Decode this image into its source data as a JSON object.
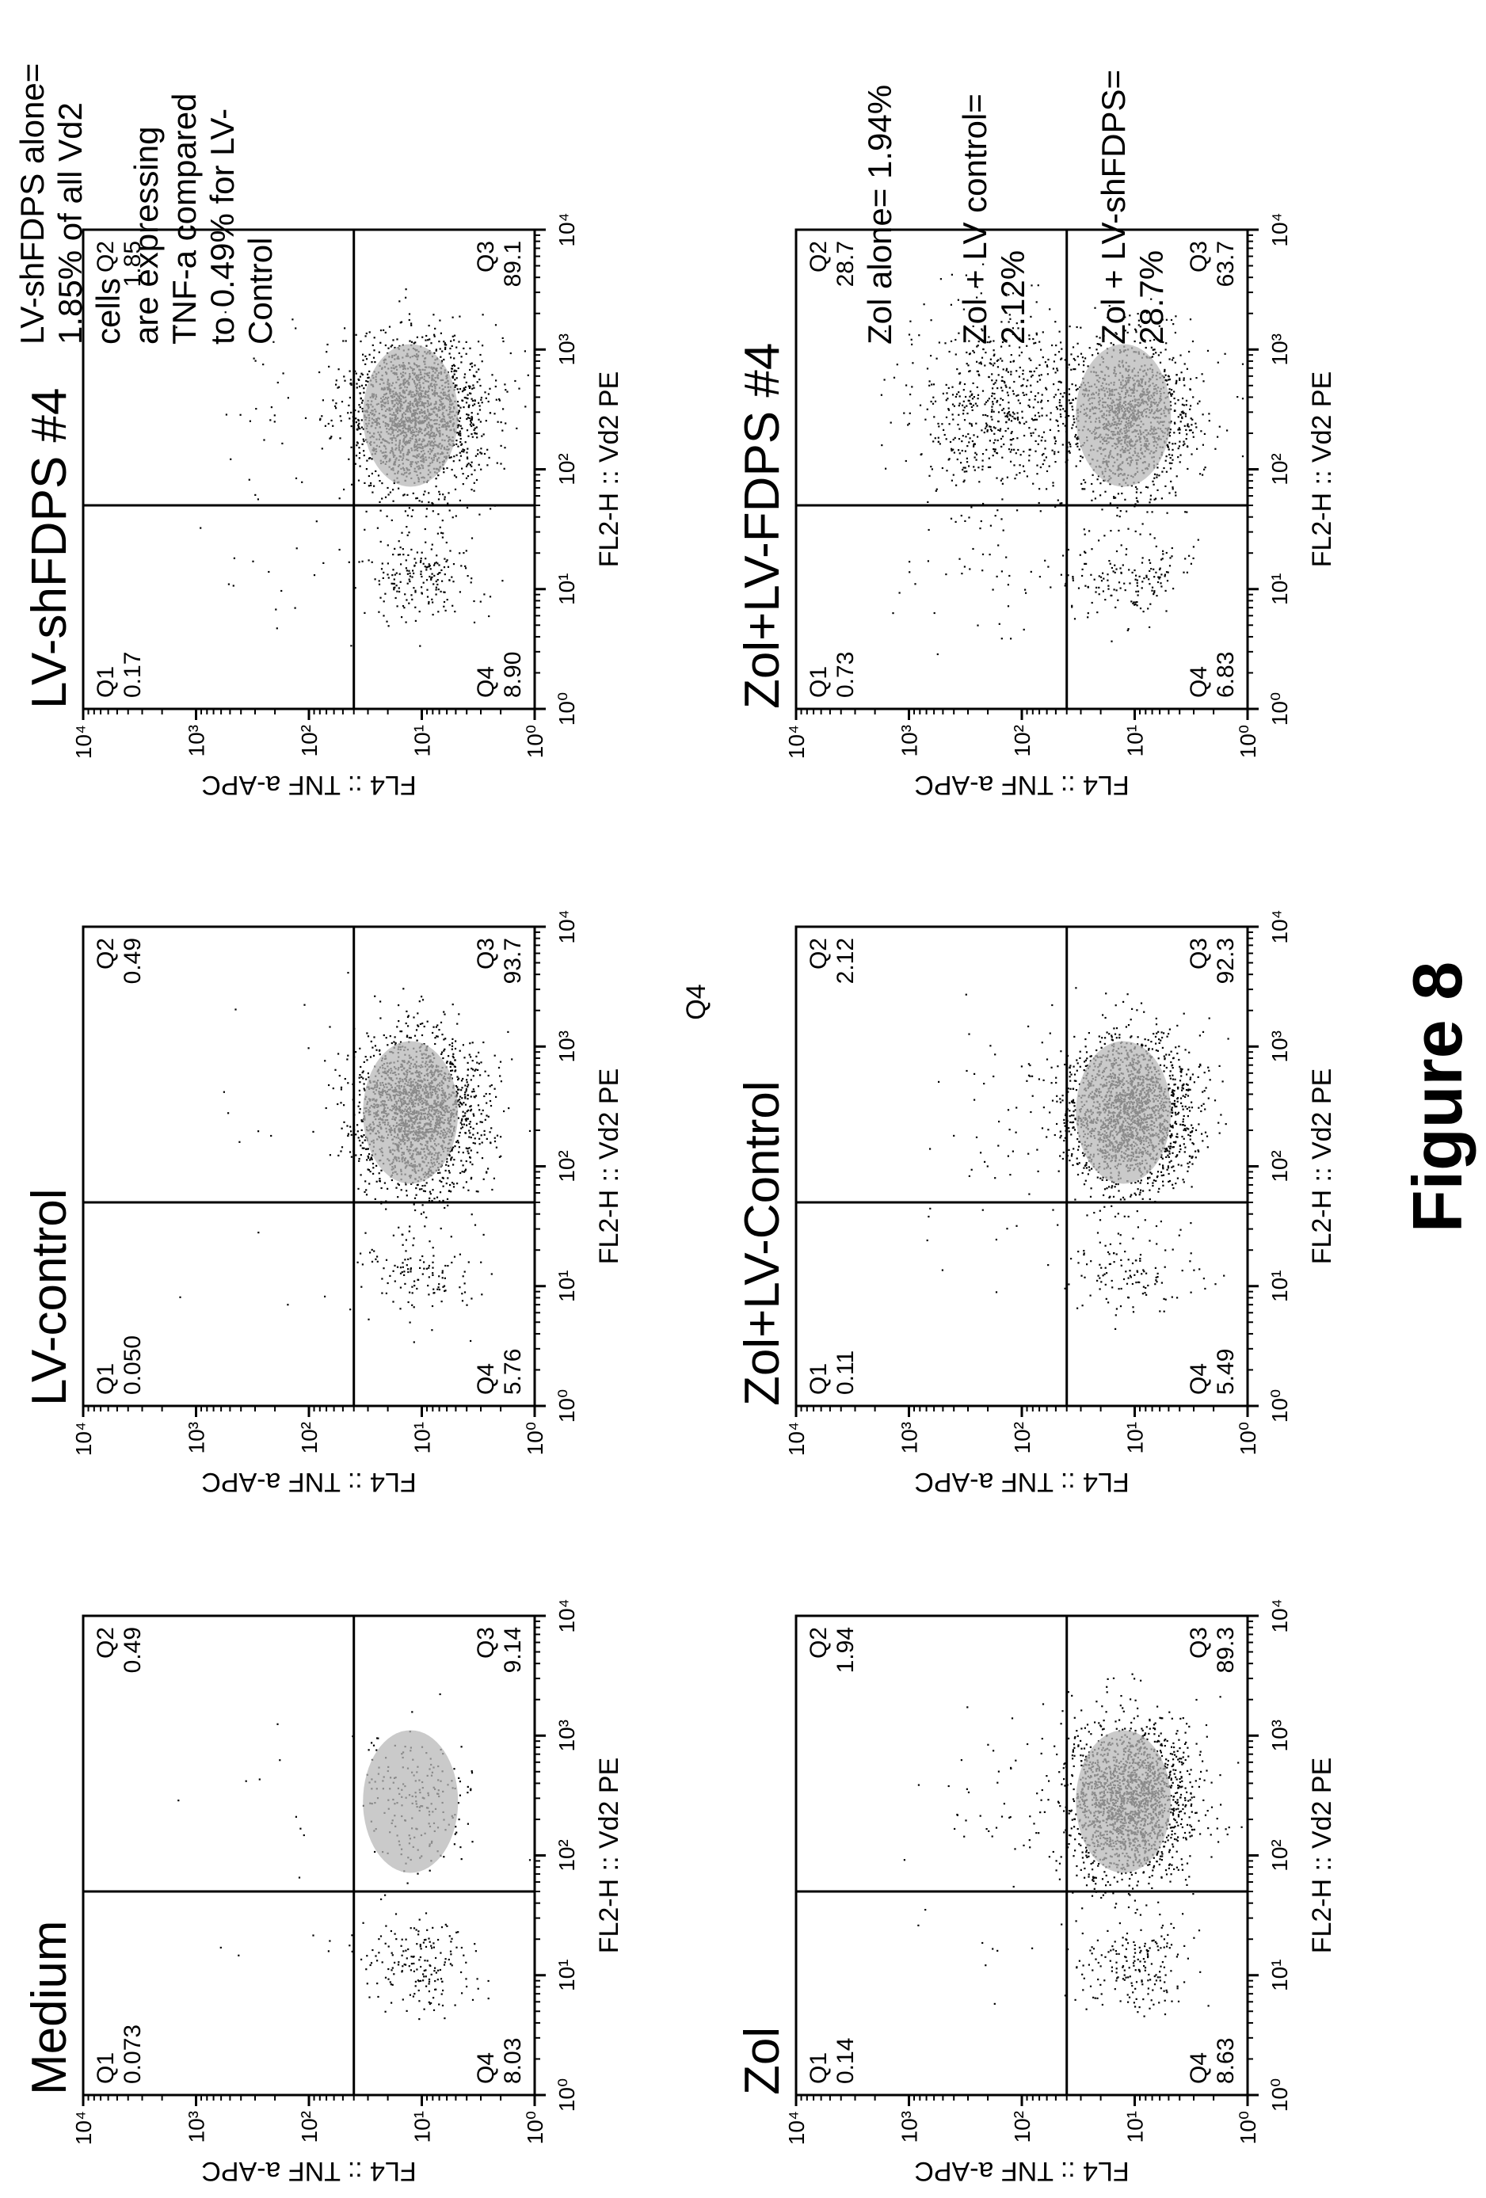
{
  "figure": {
    "caption": "Figure 8",
    "stray_label": "Q4",
    "notes": {
      "top": [
        "LV-shFDPS alone=",
        "1.85% of all Vd2",
        "cells",
        "are expressing",
        "TNF-a compared",
        "to 0.49% for LV-",
        "Control"
      ],
      "bottom": [
        "Zol alone= 1.94%",
        "Zol + LV control=",
        "2.12%",
        "Zol + LV-shFDPS=",
        "28.7%"
      ]
    }
  },
  "chart_data": [
    {
      "type": "scatter",
      "title": "Medium",
      "xlabel": "FL2-H :: Vd2 PE",
      "ylabel": "FL4 :: TNF a-APC",
      "x_scale": "log",
      "y_scale": "log",
      "xlim": [
        1,
        10000
      ],
      "ylim": [
        1,
        10000
      ],
      "tick_labels": [
        "10⁰",
        "10¹",
        "10²",
        "10³",
        "10⁴"
      ],
      "quadrants": [
        {
          "name": "Q1",
          "percent": "0.073"
        },
        {
          "name": "Q2",
          "percent": "0.49"
        },
        {
          "name": "Q3",
          "percent": "9.14"
        },
        {
          "name": "Q4",
          "percent": "8.03"
        }
      ]
    },
    {
      "type": "scatter",
      "title": "LV-control",
      "xlabel": "FL2-H :: Vd2 PE",
      "ylabel": "FL4 :: TNF a-APC",
      "x_scale": "log",
      "y_scale": "log",
      "xlim": [
        1,
        10000
      ],
      "ylim": [
        1,
        10000
      ],
      "tick_labels": [
        "10⁰",
        "10¹",
        "10²",
        "10³",
        "10⁴"
      ],
      "quadrants": [
        {
          "name": "Q1",
          "percent": "0.050"
        },
        {
          "name": "Q2",
          "percent": "0.49"
        },
        {
          "name": "Q3",
          "percent": "93.7"
        },
        {
          "name": "Q4",
          "percent": "5.76"
        }
      ]
    },
    {
      "type": "scatter",
      "title": "LV-shFDPS #4",
      "xlabel": "FL2-H :: Vd2 PE",
      "ylabel": "FL4 :: TNF a-APC",
      "x_scale": "log",
      "y_scale": "log",
      "xlim": [
        1,
        10000
      ],
      "ylim": [
        1,
        10000
      ],
      "tick_labels": [
        "10⁰",
        "10¹",
        "10²",
        "10³",
        "10⁴"
      ],
      "quadrants": [
        {
          "name": "Q1",
          "percent": "0.17"
        },
        {
          "name": "Q2",
          "percent": "1.85"
        },
        {
          "name": "Q3",
          "percent": "89.1"
        },
        {
          "name": "Q4",
          "percent": "8.90"
        }
      ]
    },
    {
      "type": "scatter",
      "title": "Zol",
      "xlabel": "FL2-H :: Vd2 PE",
      "ylabel": "FL4 :: TNF a-APC",
      "x_scale": "log",
      "y_scale": "log",
      "xlim": [
        1,
        10000
      ],
      "ylim": [
        1,
        10000
      ],
      "tick_labels": [
        "10⁰",
        "10¹",
        "10²",
        "10³",
        "10⁴"
      ],
      "quadrants": [
        {
          "name": "Q1",
          "percent": "0.14"
        },
        {
          "name": "Q2",
          "percent": "1.94"
        },
        {
          "name": "Q3",
          "percent": "89.3"
        },
        {
          "name": "Q4",
          "percent": "8.63"
        }
      ]
    },
    {
      "type": "scatter",
      "title": "Zol+LV-Control",
      "xlabel": "FL2-H :: Vd2 PE",
      "ylabel": "FL4 :: TNF a-APC",
      "x_scale": "log",
      "y_scale": "log",
      "xlim": [
        1,
        10000
      ],
      "ylim": [
        1,
        10000
      ],
      "tick_labels": [
        "10⁰",
        "10¹",
        "10²",
        "10³",
        "10⁴"
      ],
      "quadrants": [
        {
          "name": "Q1",
          "percent": "0.11"
        },
        {
          "name": "Q2",
          "percent": "2.12"
        },
        {
          "name": "Q3",
          "percent": "92.3"
        },
        {
          "name": "Q4",
          "percent": "5.49"
        }
      ]
    },
    {
      "type": "scatter",
      "title": "Zol+LV-FDPS #4",
      "xlabel": "FL2-H :: Vd2 PE",
      "ylabel": "FL4 :: TNF a-APC",
      "x_scale": "log",
      "y_scale": "log",
      "xlim": [
        1,
        10000
      ],
      "ylim": [
        1,
        10000
      ],
      "tick_labels": [
        "10⁰",
        "10¹",
        "10²",
        "10³",
        "10⁴"
      ],
      "quadrants": [
        {
          "name": "Q1",
          "percent": "0.73"
        },
        {
          "name": "Q2",
          "percent": "28.7"
        },
        {
          "name": "Q3",
          "percent": "63.7"
        },
        {
          "name": "Q4",
          "percent": "6.83"
        }
      ]
    }
  ]
}
